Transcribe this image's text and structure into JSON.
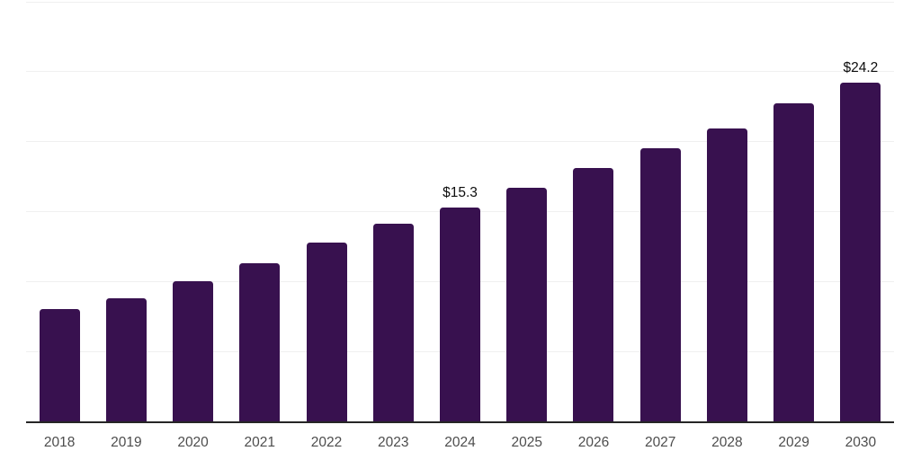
{
  "chart_data": {
    "type": "bar",
    "title": "",
    "xlabel": "",
    "ylabel": "",
    "categories": [
      "2018",
      "2019",
      "2020",
      "2021",
      "2022",
      "2023",
      "2024",
      "2025",
      "2026",
      "2027",
      "2028",
      "2029",
      "2030"
    ],
    "values": [
      8.0,
      8.8,
      10.0,
      11.3,
      12.8,
      14.1,
      15.3,
      16.7,
      18.1,
      19.5,
      20.9,
      22.7,
      24.2
    ],
    "data_labels": [
      "",
      "",
      "",
      "",
      "",
      "",
      "$15.3",
      "",
      "",
      "",
      "",
      "",
      "$24.2"
    ],
    "ylim": [
      0,
      30
    ],
    "grid_step": 5,
    "grid": "horizontal-only",
    "legend": "none",
    "y_tick_labels_visible": false,
    "colors": {
      "bar": "#38114F",
      "gridline": "#f0f0f0",
      "axis_line": "#262626",
      "tick_label": "#4d4d4d",
      "data_label": "#0d0d0d",
      "background": "#ffffff"
    }
  }
}
